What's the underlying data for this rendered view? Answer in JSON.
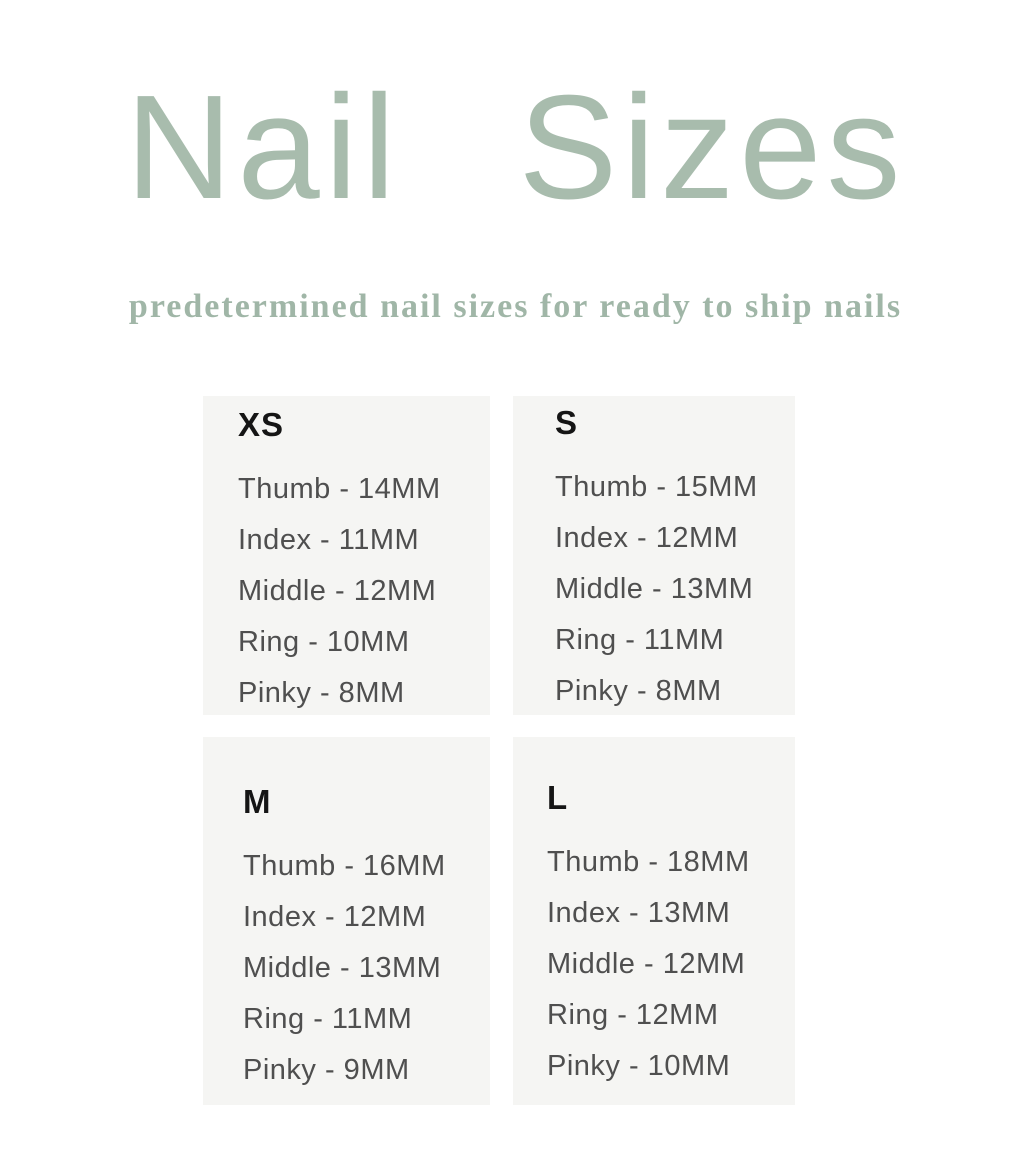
{
  "header": {
    "title": "Nail Sizes",
    "subtitle": "predetermined nail sizes for ready to ship nails"
  },
  "size_panels": [
    {
      "label": "XS",
      "rows": [
        "Thumb - 14MM",
        "Index - 11MM",
        "Middle - 12MM",
        "Ring - 10MM",
        "Pinky - 8MM"
      ]
    },
    {
      "label": "S",
      "rows": [
        "Thumb - 15MM",
        "Index - 12MM",
        "Middle - 13MM",
        "Ring - 11MM",
        "Pinky - 8MM"
      ]
    },
    {
      "label": "M",
      "rows": [
        "Thumb - 16MM",
        "Index - 12MM",
        "Middle - 13MM",
        "Ring - 11MM",
        "Pinky - 9MM"
      ]
    },
    {
      "label": "L",
      "rows": [
        "Thumb - 18MM",
        "Index - 13MM",
        "Middle - 12MM",
        "Ring - 12MM",
        "Pinky - 10MM"
      ]
    }
  ],
  "colors": {
    "accent_green": "#a8bcad",
    "subtitle_green": "#a0b6a7",
    "panel_background": "#f5f5f3",
    "heading_text": "#151515",
    "body_text": "#4f4f4f"
  }
}
